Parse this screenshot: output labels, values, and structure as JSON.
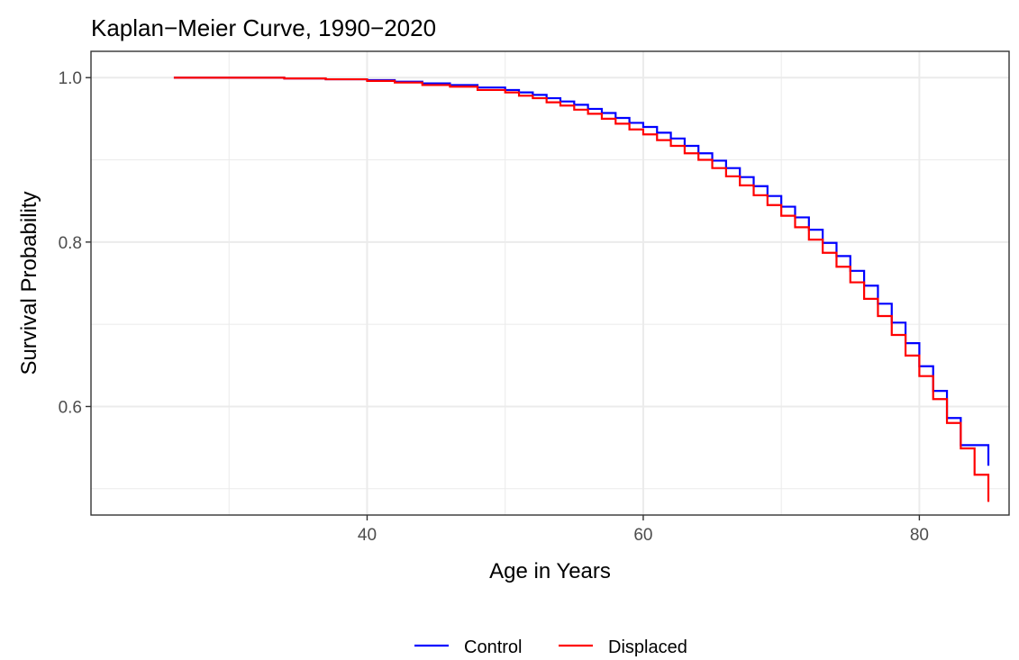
{
  "chart_data": {
    "type": "line",
    "step": true,
    "title": "Kaplan−Meier Curve, 1990−2020",
    "xlabel": "Age in Years",
    "ylabel": "Survival Probability",
    "xlim": [
      20,
      86.5
    ],
    "ylim": [
      0.468,
      1.032
    ],
    "x_ticks": [
      40,
      60,
      80
    ],
    "x_tick_labels": [
      "40",
      "60",
      "80"
    ],
    "y_ticks": [
      0.6,
      0.8,
      1.0
    ],
    "y_tick_labels": [
      "0.6",
      "0.8",
      "1.0"
    ],
    "x_minor": [
      30,
      50,
      70
    ],
    "y_minor": [
      0.5,
      0.7,
      0.9
    ],
    "grid": true,
    "legend_position": "bottom",
    "series": [
      {
        "name": "Control",
        "color": "#0000ff",
        "x": [
          26,
          30,
          34,
          37,
          40,
          42,
          44,
          46,
          48,
          50,
          51,
          52,
          53,
          54,
          55,
          56,
          57,
          58,
          59,
          60,
          61,
          62,
          63,
          64,
          65,
          66,
          67,
          68,
          69,
          70,
          71,
          72,
          73,
          74,
          75,
          76,
          77,
          78,
          79,
          80,
          81,
          82,
          83,
          84,
          85
        ],
        "y": [
          1.0,
          1.0,
          0.999,
          0.998,
          0.997,
          0.995,
          0.993,
          0.991,
          0.988,
          0.985,
          0.982,
          0.979,
          0.975,
          0.971,
          0.967,
          0.962,
          0.957,
          0.951,
          0.945,
          0.94,
          0.933,
          0.926,
          0.917,
          0.908,
          0.899,
          0.89,
          0.879,
          0.868,
          0.856,
          0.843,
          0.83,
          0.815,
          0.799,
          0.783,
          0.765,
          0.747,
          0.725,
          0.702,
          0.677,
          0.649,
          0.619,
          0.586,
          0.553,
          0.553,
          0.528
        ]
      },
      {
        "name": "Displaced",
        "color": "#ff0000",
        "x": [
          26,
          30,
          34,
          37,
          40,
          42,
          44,
          46,
          48,
          50,
          51,
          52,
          53,
          54,
          55,
          56,
          57,
          58,
          59,
          60,
          61,
          62,
          63,
          64,
          65,
          66,
          67,
          68,
          69,
          70,
          71,
          72,
          73,
          74,
          75,
          76,
          77,
          78,
          79,
          80,
          81,
          82,
          83,
          84,
          85
        ],
        "y": [
          1.0,
          1.0,
          0.999,
          0.998,
          0.996,
          0.994,
          0.991,
          0.989,
          0.985,
          0.982,
          0.978,
          0.975,
          0.97,
          0.966,
          0.961,
          0.956,
          0.95,
          0.944,
          0.937,
          0.931,
          0.924,
          0.917,
          0.908,
          0.9,
          0.89,
          0.88,
          0.869,
          0.857,
          0.845,
          0.832,
          0.818,
          0.803,
          0.787,
          0.77,
          0.751,
          0.731,
          0.71,
          0.687,
          0.662,
          0.637,
          0.609,
          0.58,
          0.549,
          0.517,
          0.484
        ]
      }
    ]
  }
}
